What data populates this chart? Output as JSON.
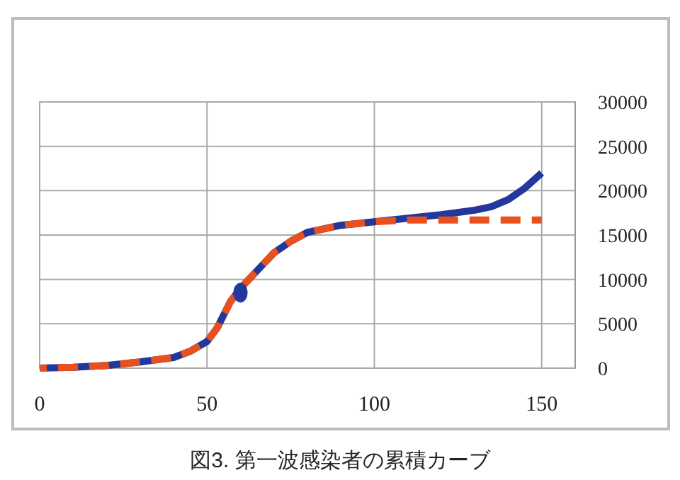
{
  "chart_data": {
    "type": "line",
    "annotations": [
      "図3. 第一波感染者の累積カーブ"
    ],
    "xlim": [
      0,
      160
    ],
    "xticks": [
      0,
      50,
      100,
      150
    ],
    "ylim": [
      0,
      30000
    ],
    "yticks": [
      0,
      5000,
      10000,
      15000,
      20000,
      25000,
      30000
    ],
    "grid": true,
    "series": [
      {
        "color": "#23389c",
        "line_style": "solid",
        "x": [
          0,
          10,
          20,
          30,
          40,
          45,
          50,
          53,
          55,
          57,
          60,
          65,
          70,
          75,
          80,
          90,
          100,
          110,
          120,
          130,
          135,
          140,
          145,
          150
        ],
        "values": [
          0,
          100,
          300,
          700,
          1200,
          1900,
          3000,
          4500,
          6000,
          7500,
          9000,
          11000,
          13000,
          14300,
          15300,
          16100,
          16500,
          16900,
          17300,
          17800,
          18200,
          19000,
          20300,
          22000
        ]
      },
      {
        "color": "#e8501e",
        "line_style": "dashed",
        "x": [
          0,
          10,
          20,
          30,
          40,
          45,
          50,
          53,
          55,
          57,
          60,
          65,
          70,
          75,
          80,
          90,
          100,
          105,
          110,
          150
        ],
        "values": [
          0,
          100,
          300,
          700,
          1200,
          1900,
          3000,
          4500,
          6000,
          7500,
          9000,
          11000,
          13000,
          14300,
          15300,
          16100,
          16500,
          16600,
          16700,
          16700
        ]
      },
      {
        "type": "scatter",
        "color": "#23389c",
        "marker": "circle",
        "x": [
          60
        ],
        "values": [
          8500
        ]
      }
    ]
  }
}
